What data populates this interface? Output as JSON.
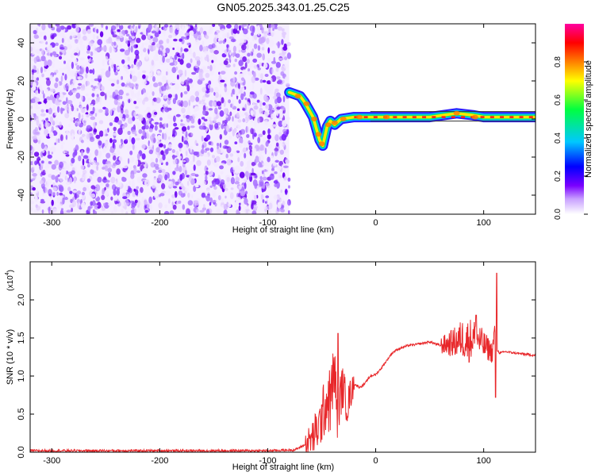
{
  "title": "GN05.2025.343.01.25.C25",
  "chart_data": [
    {
      "type": "heatmap",
      "xlabel": "Height of straight line (km)",
      "ylabel": "Frequency (Hz)",
      "xlim": [
        -320,
        148
      ],
      "ylim": [
        -50,
        50
      ],
      "x_ticks": [
        -300,
        -200,
        -100,
        0,
        100
      ],
      "y_ticks": [
        -40,
        -20,
        0,
        20,
        40
      ],
      "colorbar": {
        "label": "Normalized spectral amplitude",
        "range": [
          0.0,
          1.0
        ],
        "ticks": [
          "0.0",
          "0.2",
          "0.4",
          "0.6",
          "0.8"
        ],
        "colormap": [
          "#ffffff",
          "#7a00ff",
          "#0000ff",
          "#00c8ff",
          "#00ff40",
          "#ffff00",
          "#ff8000",
          "#ff0000",
          "#ff00a0"
        ]
      },
      "noise_region": {
        "x_range": [
          -320,
          -80
        ],
        "y_range": [
          -50,
          50
        ],
        "level": 0.25
      },
      "signal_ridge": [
        {
          "x": -80,
          "y": 14
        },
        {
          "x": -75,
          "y": 13
        },
        {
          "x": -70,
          "y": 12
        },
        {
          "x": -66,
          "y": 9
        },
        {
          "x": -62,
          "y": 5
        },
        {
          "x": -58,
          "y": 1
        },
        {
          "x": -55,
          "y": -5
        },
        {
          "x": -52,
          "y": -11
        },
        {
          "x": -49,
          "y": -14
        },
        {
          "x": -45,
          "y": -4
        },
        {
          "x": -42,
          "y": -1
        },
        {
          "x": -38,
          "y": -3
        },
        {
          "x": -32,
          "y": 0
        },
        {
          "x": -20,
          "y": 1
        },
        {
          "x": -5,
          "y": 1
        },
        {
          "x": 20,
          "y": 1
        },
        {
          "x": 50,
          "y": 1
        },
        {
          "x": 75,
          "y": 3
        },
        {
          "x": 90,
          "y": 2
        },
        {
          "x": 100,
          "y": 1
        },
        {
          "x": 108,
          "y": 1
        },
        {
          "x": 148,
          "y": 1
        }
      ]
    },
    {
      "type": "line",
      "xlabel": "Height of straight line (km)",
      "ylabel": "SNR (10 * v/v)",
      "y_multiplier": "(x10",
      "y_multiplier_exp": "4",
      "y_multiplier_close": ")",
      "xlim": [
        -320,
        148
      ],
      "ylim": [
        0,
        2.5
      ],
      "x_ticks": [
        -300,
        -200,
        -100,
        0,
        100
      ],
      "y_ticks": [
        "0.0",
        "0.5",
        "1.0",
        "1.5",
        "2.0"
      ],
      "color": "#e8272a",
      "series": [
        {
          "x": [
            -320,
            -200,
            -100,
            -75,
            -65,
            -58,
            -52,
            -48,
            -45,
            -42,
            -40,
            -38,
            -36,
            -34,
            -32,
            -30,
            -28,
            -26,
            -24,
            -22,
            -20,
            -15,
            -10,
            -5,
            0,
            5,
            10,
            15,
            20,
            30,
            40,
            50,
            60,
            70,
            75,
            80,
            85,
            90,
            95,
            100,
            105,
            108,
            110,
            112,
            115,
            120,
            130,
            148
          ],
          "y": [
            0.02,
            0.02,
            0.02,
            0.03,
            0.1,
            0.2,
            0.35,
            0.55,
            0.7,
            0.65,
            0.9,
            1.1,
            0.5,
            0.6,
            0.8,
            0.85,
            0.7,
            0.6,
            0.75,
            0.8,
            0.9,
            0.85,
            0.9,
            1.0,
            1.02,
            1.1,
            1.2,
            1.3,
            1.35,
            1.4,
            1.42,
            1.45,
            1.4,
            1.43,
            1.45,
            1.5,
            1.46,
            1.5,
            1.48,
            1.4,
            1.35,
            1.3,
            1.6,
            1.35,
            1.3,
            1.32,
            1.3,
            1.27
          ]
        }
      ],
      "noise_bursts": [
        {
          "x_range": [
            -65,
            -20
          ],
          "amplitude": 0.45
        },
        {
          "x_range": [
            60,
            112
          ],
          "amplitude": 0.3
        }
      ],
      "spikes": [
        {
          "x": -35,
          "y": 1.56
        },
        {
          "x": 93,
          "y": 1.8
        },
        {
          "x": 112,
          "y": 2.35
        },
        {
          "x": 111,
          "y": 0.72
        }
      ]
    }
  ]
}
